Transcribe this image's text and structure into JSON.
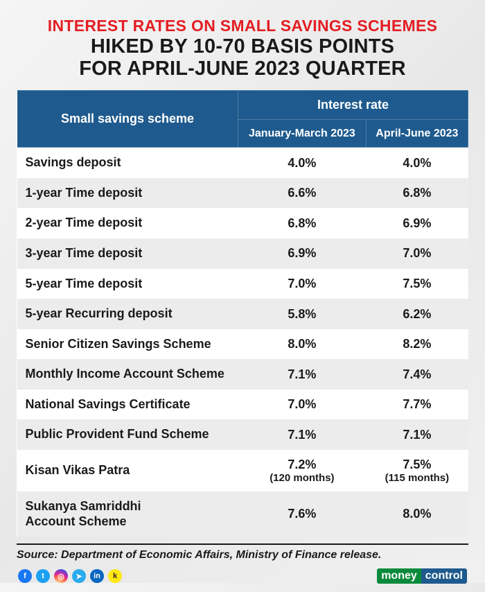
{
  "title": {
    "line1": "INTEREST RATES ON SMALL SAVINGS SCHEMES",
    "line2": "HIKED BY 10-70 BASIS POINTS",
    "line3": "FOR APRIL-JUNE 2023 QUARTER",
    "line1_color": "#e31e24",
    "line23_color": "#1a1a1a"
  },
  "table": {
    "header": {
      "scheme": "Small savings scheme",
      "rate_group": "Interest rate",
      "period1": "January-March 2023",
      "period2": "April-June 2023"
    },
    "header_bg": "#1e5a8e",
    "header_fg": "#ffffff",
    "row_odd_bg": "#ffffff",
    "row_even_bg": "#ececec",
    "rows": [
      {
        "scheme": "Savings deposit",
        "p1": "4.0%",
        "p2": "4.0%"
      },
      {
        "scheme": "1-year Time deposit",
        "p1": "6.6%",
        "p2": "6.8%"
      },
      {
        "scheme": "2-year Time deposit",
        "p1": "6.8%",
        "p2": "6.9%"
      },
      {
        "scheme": "3-year Time deposit",
        "p1": "6.9%",
        "p2": "7.0%"
      },
      {
        "scheme": "5-year Time deposit",
        "p1": "7.0%",
        "p2": "7.5%"
      },
      {
        "scheme": "5-year Recurring deposit",
        "p1": "5.8%",
        "p2": "6.2%"
      },
      {
        "scheme": "Senior Citizen Savings Scheme",
        "p1": "8.0%",
        "p2": "8.2%"
      },
      {
        "scheme": "Monthly Income Account Scheme",
        "p1": "7.1%",
        "p2": "7.4%"
      },
      {
        "scheme": "National Savings Certificate",
        "p1": "7.0%",
        "p2": "7.7%"
      },
      {
        "scheme": "Public Provident Fund Scheme",
        "p1": "7.1%",
        "p2": "7.1%"
      },
      {
        "scheme": "Kisan Vikas Patra",
        "p1": "7.2%",
        "p1_sub": "(120 months)",
        "p2": "7.5%",
        "p2_sub": "(115 months)"
      },
      {
        "scheme": "Sukanya Samriddhi\nAccount Scheme",
        "p1": "7.6%",
        "p2": "8.0%"
      }
    ]
  },
  "source": "Source: Department of Economic Affairs, Ministry of Finance release.",
  "socials": [
    {
      "name": "facebook-icon",
      "glyph": "f",
      "cls": "fb"
    },
    {
      "name": "twitter-icon",
      "glyph": "t",
      "cls": "tw"
    },
    {
      "name": "instagram-icon",
      "glyph": "◎",
      "cls": "ig"
    },
    {
      "name": "telegram-icon",
      "glyph": "➤",
      "cls": "tg"
    },
    {
      "name": "linkedin-icon",
      "glyph": "in",
      "cls": "li"
    },
    {
      "name": "koo-icon",
      "glyph": "k",
      "cls": "ko"
    }
  ],
  "brand": {
    "part1": "money",
    "part2": "control"
  }
}
